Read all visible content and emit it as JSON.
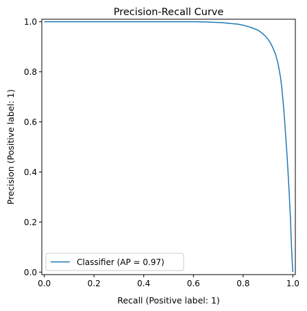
{
  "chart_data": {
    "type": "line",
    "title": "Precision-Recall Curve",
    "xlabel": "Recall (Positive label: 1)",
    "ylabel": "Precision (Positive label: 1)",
    "xlim": [
      -0.01,
      1.01
    ],
    "ylim": [
      -0.01,
      1.01
    ],
    "xticks": [
      0.0,
      0.2,
      0.4,
      0.6,
      0.8,
      1.0
    ],
    "xtick_labels": [
      "0.0",
      "0.2",
      "0.4",
      "0.6",
      "0.8",
      "1.0"
    ],
    "yticks": [
      0.0,
      0.2,
      0.4,
      0.6,
      0.8,
      1.0
    ],
    "ytick_labels": [
      "0.0",
      "0.2",
      "0.4",
      "0.6",
      "0.8",
      "1.0"
    ],
    "grid": false,
    "legend_position": "lower-left",
    "series": [
      {
        "name": "Classifier (AP = 0.97)",
        "color": "#1f77b4",
        "x": [
          0.0,
          0.1,
          0.2,
          0.3,
          0.4,
          0.5,
          0.6,
          0.65,
          0.7,
          0.72,
          0.75,
          0.78,
          0.8,
          0.82,
          0.84,
          0.86,
          0.87,
          0.88,
          0.89,
          0.9,
          0.91,
          0.92,
          0.93,
          0.94,
          0.95,
          0.955,
          0.96,
          0.965,
          0.97,
          0.975,
          0.98,
          0.985,
          0.99,
          0.993,
          0.996,
          0.998,
          1.0
        ],
        "y": [
          1.0,
          1.0,
          1.0,
          1.0,
          1.0,
          1.0,
          1.0,
          0.999,
          0.997,
          0.996,
          0.993,
          0.99,
          0.986,
          0.981,
          0.974,
          0.966,
          0.959,
          0.951,
          0.942,
          0.93,
          0.915,
          0.895,
          0.87,
          0.835,
          0.78,
          0.74,
          0.69,
          0.63,
          0.56,
          0.49,
          0.41,
          0.32,
          0.22,
          0.14,
          0.07,
          0.03,
          0.0
        ]
      }
    ]
  }
}
